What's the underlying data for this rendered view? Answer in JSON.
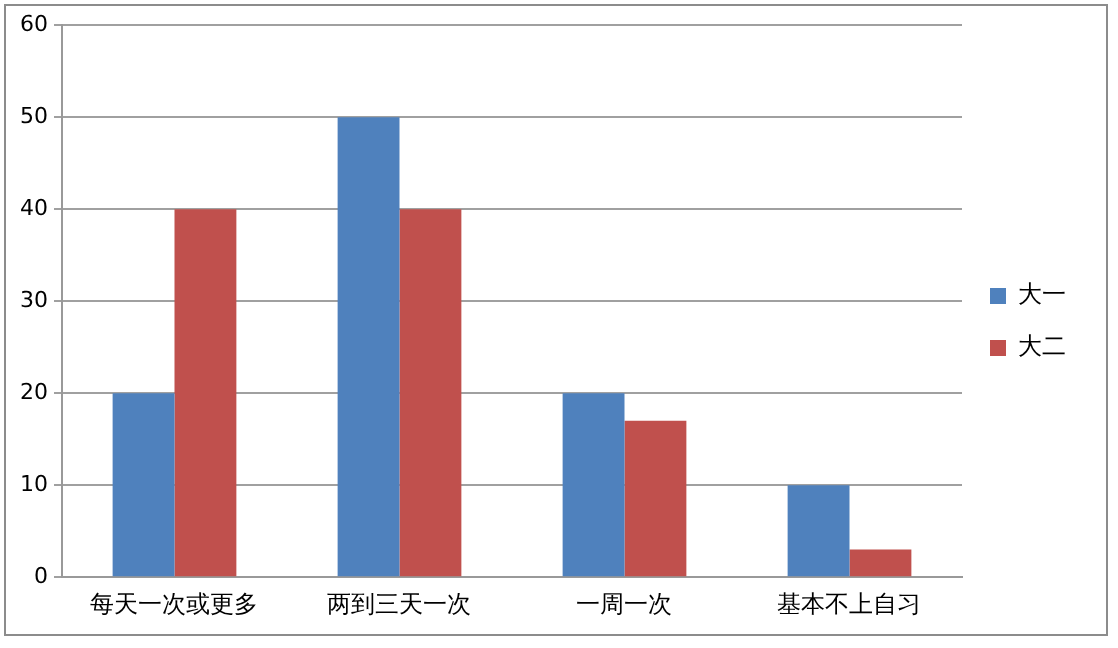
{
  "chart_data": {
    "type": "bar",
    "categories": [
      "每天一次或更多",
      "两到三天一次",
      "一周一次",
      "基本不上自习"
    ],
    "series": [
      {
        "name": "大一",
        "color": "#4f81bd",
        "values": [
          20,
          50,
          20,
          10
        ]
      },
      {
        "name": "大二",
        "color": "#c0504d",
        "values": [
          40,
          40,
          17,
          3
        ]
      }
    ],
    "ylim": [
      0,
      60
    ],
    "yticks": [
      0,
      10,
      20,
      30,
      40,
      50,
      60
    ],
    "grid": "y",
    "legend": "right"
  }
}
